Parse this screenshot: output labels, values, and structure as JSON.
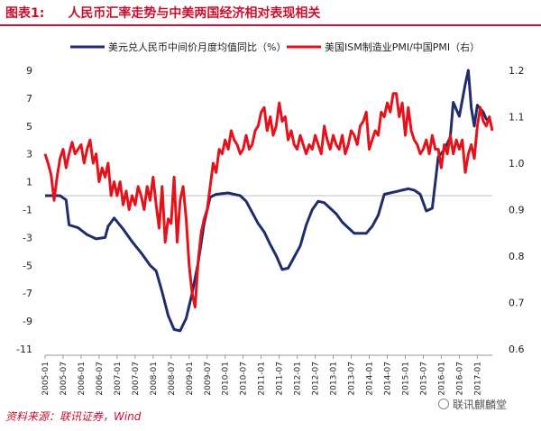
{
  "header": {
    "label": "图表1:",
    "title": "人民币汇率走势与中美两国经济相对表现相关"
  },
  "source": "资料来源：联讯证券，Wind",
  "watermark": "联讯麒麟堂",
  "colors": {
    "title": "#c8102e",
    "series_navy": "#1f2d6b",
    "series_red": "#e3121b",
    "zero_line": "#bfbfbf"
  },
  "chart_data": {
    "type": "line",
    "legend_position": "top",
    "grid": false,
    "x_ticks": [
      "2005-01",
      "2005-07",
      "2006-01",
      "2006-07",
      "2007-01",
      "2007-07",
      "2008-01",
      "2008-07",
      "2009-01",
      "2009-07",
      "2010-01",
      "2010-07",
      "2011-01",
      "2011-07",
      "2012-01",
      "2012-07",
      "2013-01",
      "2013-07",
      "2014-01",
      "2014-07",
      "2015-01",
      "2015-07",
      "2016-01",
      "2016-07",
      "2017-01"
    ],
    "x_range": [
      "2005-01",
      "2017-06"
    ],
    "y_left": {
      "range": [
        -11,
        9
      ],
      "ticks": [
        "9",
        "7",
        "5",
        "3",
        "1",
        "-1",
        "-3",
        "-5",
        "-7",
        "-9",
        "-11"
      ]
    },
    "y_right": {
      "range": [
        0.6,
        1.2
      ],
      "ticks": [
        "1.2",
        "1.1",
        "1.0",
        "0.9",
        "0.8",
        "0.7",
        "0.6"
      ]
    },
    "series": [
      {
        "name": "美元兑人民币中间价月度均值同比（%）",
        "axis": "left",
        "color": "#1f2d6b",
        "points": [
          [
            "2005-01",
            0
          ],
          [
            "2005-06",
            0
          ],
          [
            "2005-08",
            -0.3
          ],
          [
            "2005-09",
            -2.1
          ],
          [
            "2005-12",
            -2.3
          ],
          [
            "2006-03",
            -2.8
          ],
          [
            "2006-06",
            -3.1
          ],
          [
            "2006-09",
            -3.0
          ],
          [
            "2006-10",
            -2.2
          ],
          [
            "2006-12",
            -1.6
          ],
          [
            "2007-03",
            -2.4
          ],
          [
            "2007-06",
            -3.3
          ],
          [
            "2007-09",
            -4.1
          ],
          [
            "2007-12",
            -5.0
          ],
          [
            "2008-02",
            -5.4
          ],
          [
            "2008-04",
            -6.9
          ],
          [
            "2008-06",
            -8.6
          ],
          [
            "2008-08",
            -9.6
          ],
          [
            "2008-10",
            -9.7
          ],
          [
            "2008-12",
            -8.8
          ],
          [
            "2009-02",
            -7.0
          ],
          [
            "2009-04",
            -4.8
          ],
          [
            "2009-06",
            -2.0
          ],
          [
            "2009-08",
            -0.1
          ],
          [
            "2009-10",
            0.1
          ],
          [
            "2010-02",
            0.2
          ],
          [
            "2010-06",
            0
          ],
          [
            "2010-08",
            -0.4
          ],
          [
            "2010-10",
            -1.2
          ],
          [
            "2010-12",
            -2.0
          ],
          [
            "2011-02",
            -2.6
          ],
          [
            "2011-04",
            -3.5
          ],
          [
            "2011-06",
            -4.3
          ],
          [
            "2011-08",
            -5.3
          ],
          [
            "2011-10",
            -5.2
          ],
          [
            "2011-12",
            -4.4
          ],
          [
            "2012-02",
            -3.6
          ],
          [
            "2012-04",
            -2.1
          ],
          [
            "2012-06",
            -1.0
          ],
          [
            "2012-08",
            -0.4
          ],
          [
            "2012-10",
            -0.5
          ],
          [
            "2012-12",
            -0.9
          ],
          [
            "2013-02",
            -1.3
          ],
          [
            "2013-04",
            -1.9
          ],
          [
            "2013-06",
            -2.3
          ],
          [
            "2013-08",
            -2.7
          ],
          [
            "2013-10",
            -2.7
          ],
          [
            "2013-12",
            -2.7
          ],
          [
            "2014-02",
            -2.2
          ],
          [
            "2014-04",
            -1.4
          ],
          [
            "2014-06",
            0.1
          ],
          [
            "2014-08",
            0.2
          ],
          [
            "2014-10",
            0.3
          ],
          [
            "2014-12",
            0.4
          ],
          [
            "2015-02",
            0.5
          ],
          [
            "2015-04",
            0.4
          ],
          [
            "2015-06",
            0.1
          ],
          [
            "2015-08",
            -1.1
          ],
          [
            "2015-10",
            -0.9
          ],
          [
            "2015-12",
            2.8
          ],
          [
            "2016-02",
            3.3
          ],
          [
            "2016-04",
            4.2
          ],
          [
            "2016-05",
            6.7
          ],
          [
            "2016-07",
            5.7
          ],
          [
            "2016-09",
            8.0
          ],
          [
            "2016-10",
            9.0
          ],
          [
            "2016-11",
            6.3
          ],
          [
            "2016-12",
            5.0
          ],
          [
            "2017-01",
            6.5
          ],
          [
            "2017-03",
            6.0
          ],
          [
            "2017-04",
            5.5
          ],
          [
            "2017-05",
            5.3
          ]
        ]
      },
      {
        "name": "美国ISM制造业PMI/中国PMI（右）",
        "axis": "right",
        "color": "#e3121b",
        "points": [
          [
            "2005-01",
            1.02
          ],
          [
            "2005-02",
            1.0
          ],
          [
            "2005-03",
            0.975
          ],
          [
            "2005-04",
            0.92
          ],
          [
            "2005-05",
            0.97
          ],
          [
            "2005-06",
            1.01
          ],
          [
            "2005-07",
            1.03
          ],
          [
            "2005-08",
            0.99
          ],
          [
            "2005-09",
            1.02
          ],
          [
            "2005-10",
            1.045
          ],
          [
            "2005-11",
            1.02
          ],
          [
            "2005-12",
            1.03
          ],
          [
            "2006-01",
            1.04
          ],
          [
            "2006-02",
            1.0
          ],
          [
            "2006-03",
            1.03
          ],
          [
            "2006-04",
            1.05
          ],
          [
            "2006-05",
            1.0
          ],
          [
            "2006-06",
            1.02
          ],
          [
            "2006-07",
            0.96
          ],
          [
            "2006-08",
            0.99
          ],
          [
            "2006-09",
            0.97
          ],
          [
            "2006-10",
            1.0
          ],
          [
            "2006-11",
            0.93
          ],
          [
            "2006-12",
            0.96
          ],
          [
            "2007-01",
            0.93
          ],
          [
            "2007-02",
            0.96
          ],
          [
            "2007-03",
            0.91
          ],
          [
            "2007-04",
            0.94
          ],
          [
            "2007-05",
            0.9
          ],
          [
            "2007-06",
            0.93
          ],
          [
            "2007-07",
            0.91
          ],
          [
            "2007-08",
            0.95
          ],
          [
            "2007-09",
            0.93
          ],
          [
            "2007-10",
            0.9
          ],
          [
            "2007-11",
            0.95
          ],
          [
            "2007-12",
            0.92
          ],
          [
            "2008-01",
            0.97
          ],
          [
            "2008-02",
            0.91
          ],
          [
            "2008-03",
            0.86
          ],
          [
            "2008-04",
            0.95
          ],
          [
            "2008-05",
            0.83
          ],
          [
            "2008-06",
            0.88
          ],
          [
            "2008-07",
            0.87
          ],
          [
            "2008-08",
            0.97
          ],
          [
            "2008-09",
            0.83
          ],
          [
            "2008-10",
            0.92
          ],
          [
            "2008-11",
            0.95
          ],
          [
            "2008-12",
            0.88
          ],
          [
            "2009-01",
            0.78
          ],
          [
            "2009-02",
            0.72
          ],
          [
            "2009-03",
            0.69
          ],
          [
            "2009-04",
            0.79
          ],
          [
            "2009-05",
            0.85
          ],
          [
            "2009-06",
            0.88
          ],
          [
            "2009-07",
            0.9
          ],
          [
            "2009-08",
            0.95
          ],
          [
            "2009-09",
            1.0
          ],
          [
            "2009-10",
            0.98
          ],
          [
            "2009-11",
            1.03
          ],
          [
            "2009-12",
            1.02
          ],
          [
            "2010-01",
            1.05
          ],
          [
            "2010-02",
            1.03
          ],
          [
            "2010-03",
            1.07
          ],
          [
            "2010-04",
            1.05
          ],
          [
            "2010-05",
            1.04
          ],
          [
            "2010-06",
            1.02
          ],
          [
            "2010-07",
            1.03
          ],
          [
            "2010-08",
            1.06
          ],
          [
            "2010-09",
            1.03
          ],
          [
            "2010-10",
            1.04
          ],
          [
            "2010-11",
            1.07
          ],
          [
            "2010-12",
            1.08
          ],
          [
            "2011-01",
            1.11
          ],
          [
            "2011-02",
            1.12
          ],
          [
            "2011-03",
            1.07
          ],
          [
            "2011-04",
            1.1
          ],
          [
            "2011-05",
            1.06
          ],
          [
            "2011-06",
            1.08
          ],
          [
            "2011-07",
            1.13
          ],
          [
            "2011-08",
            1.09
          ],
          [
            "2011-09",
            1.1
          ],
          [
            "2011-10",
            1.05
          ],
          [
            "2011-11",
            1.07
          ],
          [
            "2011-12",
            1.04
          ],
          [
            "2012-01",
            1.03
          ],
          [
            "2012-02",
            1.06
          ],
          [
            "2012-03",
            1.04
          ],
          [
            "2012-04",
            1.02
          ],
          [
            "2012-05",
            1.04
          ],
          [
            "2012-06",
            1.03
          ],
          [
            "2012-07",
            1.06
          ],
          [
            "2012-08",
            1.04
          ],
          [
            "2012-09",
            1.02
          ],
          [
            "2012-10",
            1.08
          ],
          [
            "2012-11",
            1.05
          ],
          [
            "2012-12",
            1.03
          ],
          [
            "2013-01",
            1.06
          ],
          [
            "2013-02",
            1.04
          ],
          [
            "2013-03",
            1.03
          ],
          [
            "2013-04",
            1.06
          ],
          [
            "2013-05",
            1.02
          ],
          [
            "2013-06",
            1.04
          ],
          [
            "2013-07",
            1.07
          ],
          [
            "2013-08",
            1.06
          ],
          [
            "2013-09",
            1.04
          ],
          [
            "2013-10",
            1.08
          ],
          [
            "2013-11",
            1.09
          ],
          [
            "2013-12",
            1.11
          ],
          [
            "2014-01",
            1.03
          ],
          [
            "2014-02",
            1.05
          ],
          [
            "2014-03",
            1.07
          ],
          [
            "2014-04",
            1.06
          ],
          [
            "2014-05",
            1.11
          ],
          [
            "2014-06",
            1.1
          ],
          [
            "2014-07",
            1.13
          ],
          [
            "2014-08",
            1.11
          ],
          [
            "2014-09",
            1.15
          ],
          [
            "2014-10",
            1.15
          ],
          [
            "2014-11",
            1.1
          ],
          [
            "2014-12",
            1.13
          ],
          [
            "2015-01",
            1.06
          ],
          [
            "2015-02",
            1.12
          ],
          [
            "2015-03",
            1.07
          ],
          [
            "2015-04",
            1.05
          ],
          [
            "2015-05",
            1.04
          ],
          [
            "2015-06",
            1.02
          ],
          [
            "2015-07",
            1.03
          ],
          [
            "2015-08",
            1.05
          ],
          [
            "2015-09",
            1.02
          ],
          [
            "2015-10",
            1.06
          ],
          [
            "2015-11",
            1.03
          ],
          [
            "2015-12",
            1.03
          ],
          [
            "2016-01",
            0.99
          ],
          [
            "2016-02",
            1.04
          ],
          [
            "2016-03",
            1.02
          ],
          [
            "2016-04",
            1.06
          ],
          [
            "2016-05",
            1.02
          ],
          [
            "2016-06",
            1.05
          ],
          [
            "2016-07",
            1.03
          ],
          [
            "2016-08",
            1.05
          ],
          [
            "2016-09",
            0.98
          ],
          [
            "2016-10",
            1.02
          ],
          [
            "2016-11",
            1.04
          ],
          [
            "2016-12",
            1.01
          ],
          [
            "2017-01",
            1.08
          ],
          [
            "2017-02",
            1.12
          ],
          [
            "2017-03",
            1.09
          ],
          [
            "2017-04",
            1.08
          ],
          [
            "2017-05",
            1.1
          ],
          [
            "2017-06",
            1.07
          ]
        ]
      }
    ]
  }
}
